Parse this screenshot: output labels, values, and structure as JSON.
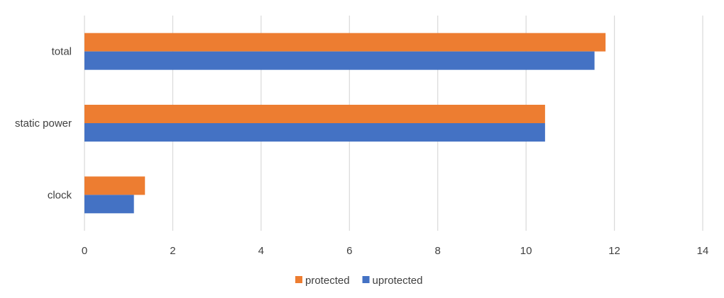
{
  "chart_data": {
    "type": "bar",
    "orientation": "horizontal",
    "categories": [
      "total",
      "static power",
      "clock"
    ],
    "series": [
      {
        "name": "protected",
        "color": "#ED7D31",
        "values": [
          11.8,
          10.43,
          1.37
        ]
      },
      {
        "name": "uprotected",
        "color": "#4472C4",
        "values": [
          11.55,
          10.43,
          1.12
        ]
      }
    ],
    "xlim": [
      0,
      14
    ],
    "xticks": [
      0,
      2,
      4,
      6,
      8,
      10,
      12,
      14
    ],
    "grid": "vertical",
    "legend_position": "bottom",
    "title": "",
    "xlabel": "",
    "ylabel": ""
  }
}
